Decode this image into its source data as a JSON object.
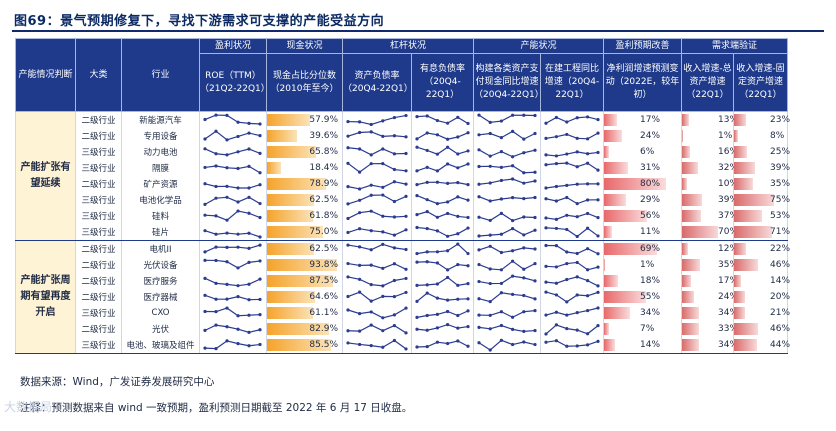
{
  "title": "图69：景气预期修复下，寻找下游需求可支撑的产能受益方向",
  "headers": {
    "group_col": "产能情况判断",
    "level_col": "大类",
    "industry_col": "行业",
    "profit_group": "盈利状况",
    "cash_group": "现金状况",
    "leverage_group": "杠杆状况",
    "capacity_group": "产能状况",
    "forecast_group": "盈利预期改善",
    "demand_group": "需求端验证",
    "roe": "ROE（TTM）（21Q2-22Q1）",
    "cash": "现金占比分位数（2010年至今）",
    "debt": "资产负债率（20Q4-22Q1）",
    "interest": "有息负债率（20Q4-22Q1）",
    "capex": "构建各类资产支付现金同比增速（20Q4-22Q1）",
    "construction": "在建工程同比增速（20Q4-22Q1）",
    "profit_growth": "净利润增速预测变动（2022E，较年初）",
    "revenue_growth": "收入增速-总资产增速（22Q1）",
    "asset_growth": "收入增速-固定资产增速（22Q1）"
  },
  "groups": [
    {
      "label": "产能扩张有望延续",
      "rows": [
        {
          "level": "二级行业",
          "industry": "新能源汽车",
          "cash": "57.9%",
          "cash_v": 57.9,
          "pg": "17%",
          "pg_v": 17,
          "rg": "13%",
          "rg_v": 13,
          "ag": "23%",
          "ag_v": 23
        },
        {
          "level": "二级行业",
          "industry": "专用设备",
          "cash": "39.6%",
          "cash_v": 39.6,
          "pg": "24%",
          "pg_v": 24,
          "rg": "1%",
          "rg_v": 1,
          "ag": "8%",
          "ag_v": 8
        },
        {
          "level": "三级行业",
          "industry": "动力电池",
          "cash": "65.8%",
          "cash_v": 65.8,
          "pg": "6%",
          "pg_v": 6,
          "rg": "16%",
          "rg_v": 16,
          "ag": "25%",
          "ag_v": 25
        },
        {
          "level": "三级行业",
          "industry": "隔膜",
          "cash": "18.4%",
          "cash_v": 18.4,
          "pg": "31%",
          "pg_v": 31,
          "rg": "32%",
          "rg_v": 32,
          "ag": "39%",
          "ag_v": 39
        },
        {
          "level": "二级行业",
          "industry": "矿产资源",
          "cash": "78.9%",
          "cash_v": 78.9,
          "pg": "80%",
          "pg_v": 80,
          "rg": "10%",
          "rg_v": 10,
          "ag": "35%",
          "ag_v": 35
        },
        {
          "level": "三级行业",
          "industry": "电池化学品",
          "cash": "62.5%",
          "cash_v": 62.5,
          "pg": "29%",
          "pg_v": 29,
          "rg": "39%",
          "rg_v": 39,
          "ag": "75%",
          "ag_v": 75
        },
        {
          "level": "三级行业",
          "industry": "硅料",
          "cash": "61.8%",
          "cash_v": 61.8,
          "pg": "56%",
          "pg_v": 56,
          "rg": "37%",
          "rg_v": 37,
          "ag": "53%",
          "ag_v": 53
        },
        {
          "level": "三级行业",
          "industry": "硅片",
          "cash": "75.0%",
          "cash_v": 75.0,
          "pg": "11%",
          "pg_v": 11,
          "rg": "70%",
          "rg_v": 70,
          "ag": "71%",
          "ag_v": 71
        }
      ]
    },
    {
      "label": "产能扩张周期有望再度开启",
      "rows": [
        {
          "level": "二级行业",
          "industry": "电机II",
          "cash": "62.5%",
          "cash_v": 62.5,
          "pg": "69%",
          "pg_v": 69,
          "rg": "12%",
          "rg_v": 12,
          "ag": "22%",
          "ag_v": 22
        },
        {
          "level": "二级行业",
          "industry": "光伏设备",
          "cash": "93.8%",
          "cash_v": 93.8,
          "pg": "1%",
          "pg_v": 1,
          "rg": "35%",
          "rg_v": 35,
          "ag": "46%",
          "ag_v": 46
        },
        {
          "level": "二级行业",
          "industry": "医疗服务",
          "cash": "87.5%",
          "cash_v": 87.5,
          "pg": "18%",
          "pg_v": 18,
          "rg": "17%",
          "rg_v": 17,
          "ag": "14%",
          "ag_v": 14
        },
        {
          "level": "二级行业",
          "industry": "医疗器械",
          "cash": "64.6%",
          "cash_v": 64.6,
          "pg": "55%",
          "pg_v": 55,
          "rg": "24%",
          "rg_v": 24,
          "ag": "20%",
          "ag_v": 20
        },
        {
          "level": "三级行业",
          "industry": "CXO",
          "cash": "61.1%",
          "cash_v": 61.1,
          "pg": "34%",
          "pg_v": 34,
          "rg": "34%",
          "rg_v": 34,
          "ag": "21%",
          "ag_v": 21
        },
        {
          "level": "二级行业",
          "industry": "光伏",
          "cash": "82.9%",
          "cash_v": 82.9,
          "pg": "7%",
          "pg_v": 7,
          "rg": "33%",
          "rg_v": 33,
          "ag": "46%",
          "ag_v": 46
        },
        {
          "level": "三级行业",
          "industry": "电池、玻璃及组件",
          "cash": "85.5%",
          "cash_v": 85.5,
          "pg": "14%",
          "pg_v": 14,
          "rg": "34%",
          "rg_v": 34,
          "ag": "44%",
          "ag_v": 44
        }
      ]
    }
  ],
  "source": "数据来源：Wind，广发证券发展研究中心",
  "note": "注释：预测数据来自 wind 一致预期，盈利预测日期截至 2022 年 6 月 17 日收盘。",
  "watermark": "大数据局",
  "colors": {
    "header": "#1f3a8a",
    "cash_bar": "#f5a32a",
    "forecast_bar": "#e8686a",
    "group_bg": "#fff3d6",
    "spark": "#2b3b8f"
  }
}
